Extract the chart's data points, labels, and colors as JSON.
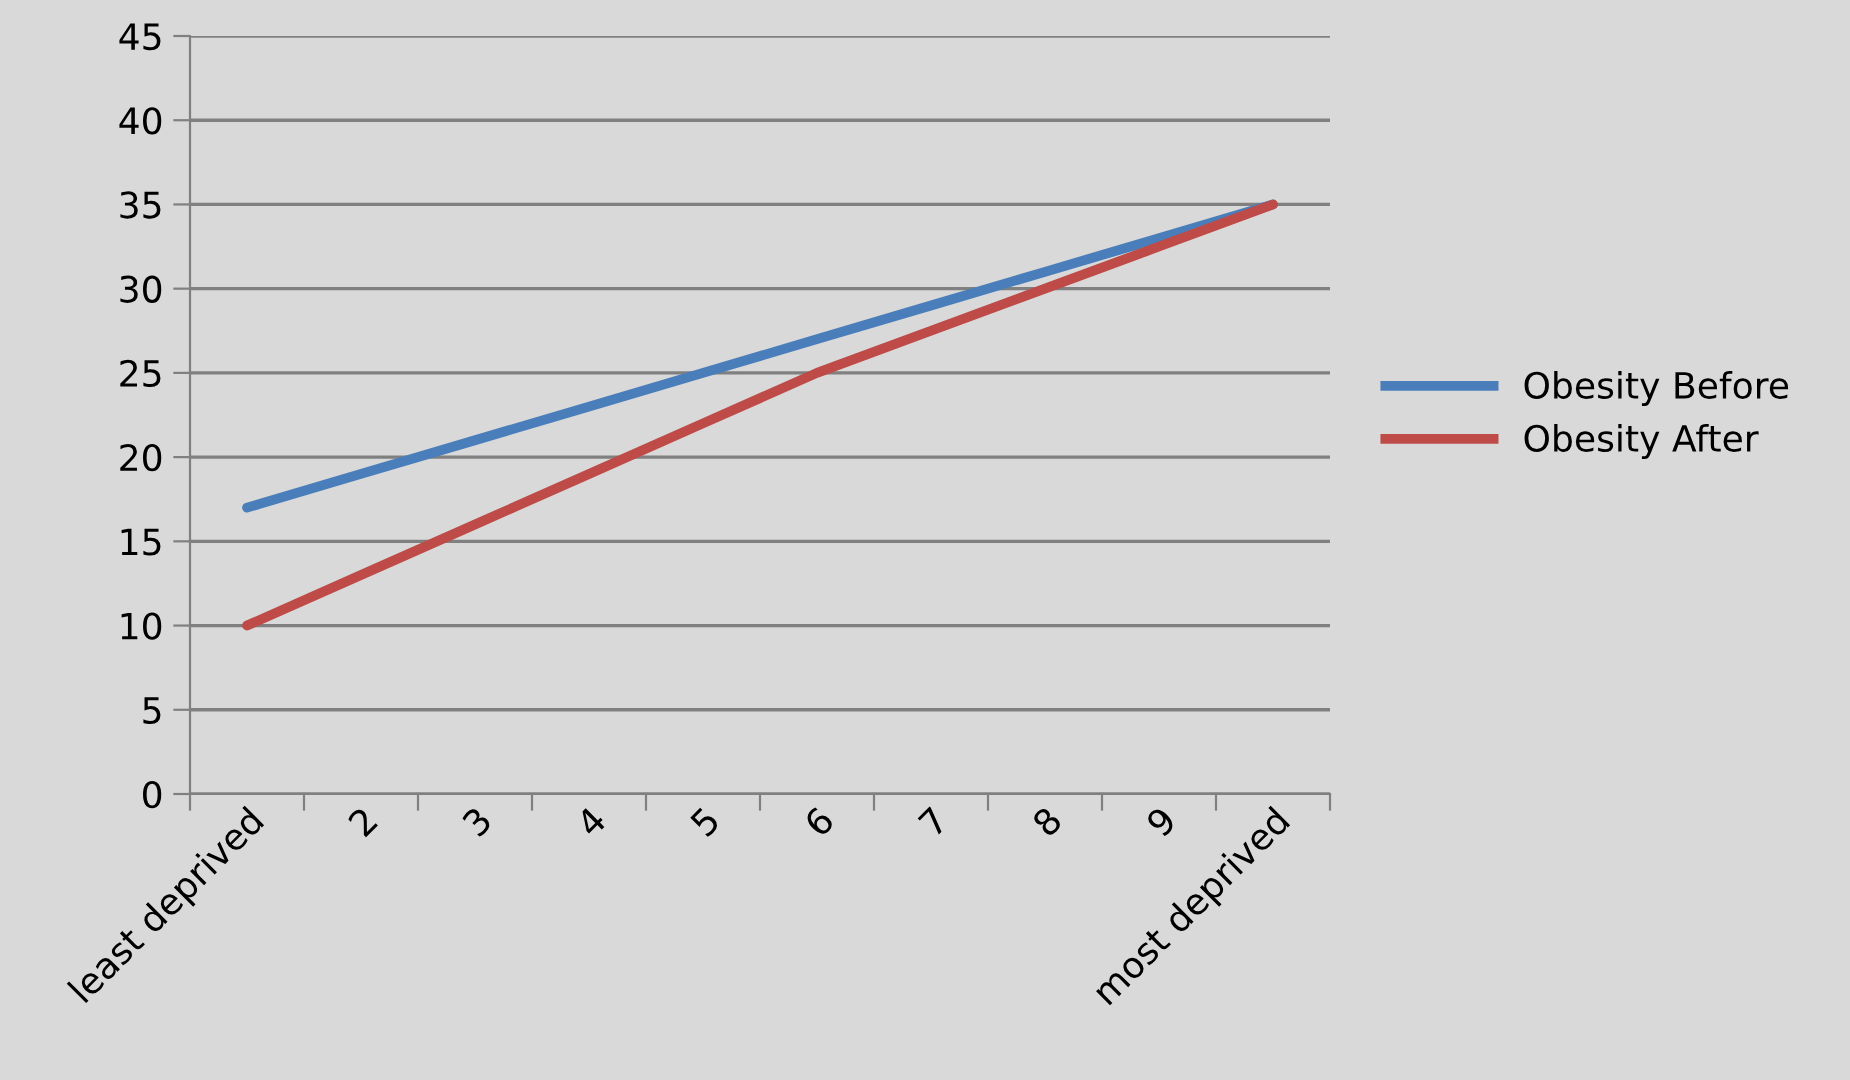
{
  "chart_data": {
    "type": "line",
    "categories": [
      "least deprived",
      "2",
      "3",
      "4",
      "5",
      "6",
      "7",
      "8",
      "9",
      "most deprived"
    ],
    "series": [
      {
        "name": "Obesity Before",
        "color": "#4a7ebb",
        "values": [
          17,
          19,
          21,
          23,
          25,
          27,
          29,
          31,
          33,
          35
        ]
      },
      {
        "name": "Obesity After",
        "color": "#be4b48",
        "values": [
          10,
          13,
          16,
          19,
          22,
          25,
          27.5,
          30,
          32.5,
          35
        ]
      }
    ],
    "ylim": [
      0,
      45
    ],
    "yticks": [
      0,
      5,
      10,
      15,
      20,
      25,
      30,
      35,
      40,
      45
    ],
    "grid": "y",
    "legend": "right",
    "marker": "none",
    "line_style": "solid"
  }
}
